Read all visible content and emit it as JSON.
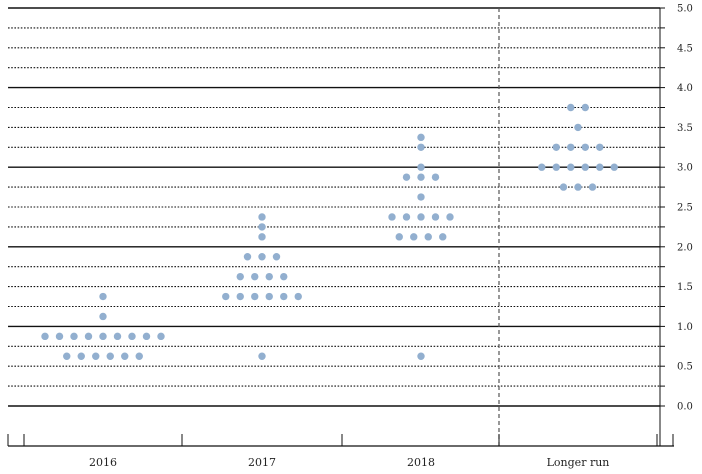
{
  "chart_data": {
    "type": "scatter",
    "categories": [
      "2016",
      "2017",
      "2018",
      "Longer run"
    ],
    "ylim": [
      0,
      5
    ],
    "y_ticks": [
      "5.0",
      "4.5",
      "4.0",
      "3.5",
      "3.0",
      "2.5",
      "2.0",
      "1.5",
      "1.0",
      "0.5",
      "0.0"
    ],
    "grid": true,
    "dot_color": "#92afcf",
    "series": [
      {
        "category": "2016",
        "points": [
          {
            "y": 1.375,
            "count": 1
          },
          {
            "y": 1.125,
            "count": 1
          },
          {
            "y": 0.875,
            "count": 9
          },
          {
            "y": 0.625,
            "count": 6
          }
        ]
      },
      {
        "category": "2017",
        "points": [
          {
            "y": 2.375,
            "count": 1
          },
          {
            "y": 2.25,
            "count": 1
          },
          {
            "y": 2.125,
            "count": 1
          },
          {
            "y": 1.875,
            "count": 3
          },
          {
            "y": 1.625,
            "count": 4
          },
          {
            "y": 1.375,
            "count": 6
          },
          {
            "y": 0.625,
            "count": 1
          }
        ]
      },
      {
        "category": "2018",
        "points": [
          {
            "y": 3.375,
            "count": 1
          },
          {
            "y": 3.25,
            "count": 1
          },
          {
            "y": 3.0,
            "count": 1
          },
          {
            "y": 2.875,
            "count": 3
          },
          {
            "y": 2.625,
            "count": 1
          },
          {
            "y": 2.375,
            "count": 5
          },
          {
            "y": 2.125,
            "count": 4
          },
          {
            "y": 0.625,
            "count": 1
          }
        ]
      },
      {
        "category": "Longer run",
        "points": [
          {
            "y": 3.75,
            "count": 2
          },
          {
            "y": 3.5,
            "count": 1
          },
          {
            "y": 3.25,
            "count": 4
          },
          {
            "y": 3.0,
            "count": 6
          },
          {
            "y": 2.75,
            "count": 3
          }
        ]
      }
    ]
  }
}
